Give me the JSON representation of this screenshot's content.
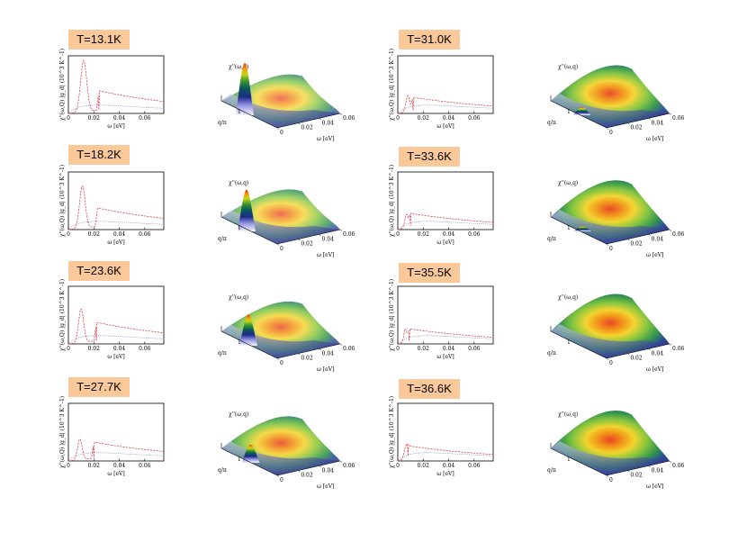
{
  "chart_data": {
    "type": "line",
    "description_free": true,
    "xlabel": "ω [eV]",
    "ylabel": "χ''(ω,Q) |g_d| (10^3 K^-1)",
    "xticks": [
      "0",
      "0.02",
      "0.04",
      "0.06"
    ],
    "xlim": [
      0,
      0.075
    ],
    "surface_zlabel": "χ''(ω,q)",
    "surface_qlabel": "q/π",
    "surface_q_tick": "1",
    "surface_xlabel": "ω [eV]",
    "surface_xticks": [
      "0",
      "0.02",
      "0.04",
      "0.06"
    ],
    "panels": [
      {
        "temperature": "T=13.1K",
        "peak_w": 0.012,
        "peak_h": 0.95,
        "gap_w": 0.024,
        "gap_h": 0.42,
        "surf_peak": 1.0,
        "surf_dome": 0.3
      },
      {
        "temperature": "T=18.2K",
        "peak_w": 0.011,
        "peak_h": 0.78,
        "gap_w": 0.023,
        "gap_h": 0.4,
        "surf_peak": 0.8,
        "surf_dome": 0.35
      },
      {
        "temperature": "T=23.6K",
        "peak_w": 0.01,
        "peak_h": 0.62,
        "gap_w": 0.022,
        "gap_h": 0.4,
        "surf_peak": 0.6,
        "surf_dome": 0.45
      },
      {
        "temperature": "T=27.7K",
        "peak_w": 0.009,
        "peak_h": 0.38,
        "gap_w": 0.02,
        "gap_h": 0.35,
        "surf_peak": 0.35,
        "surf_dome": 0.55
      },
      {
        "temperature": "T=31.0K",
        "peak_w": 0.008,
        "peak_h": 0.3,
        "gap_w": 0.012,
        "gap_h": 0.3,
        "surf_peak": 0.15,
        "surf_dome": 0.7
      },
      {
        "temperature": "T=33.6K",
        "peak_w": 0.007,
        "peak_h": 0.25,
        "gap_w": 0.01,
        "gap_h": 0.3,
        "surf_peak": 0.1,
        "surf_dome": 0.75
      },
      {
        "temperature": "T=35.5K",
        "peak_w": 0.006,
        "peak_h": 0.25,
        "gap_w": 0.009,
        "gap_h": 0.28,
        "surf_peak": 0.05,
        "surf_dome": 0.78
      },
      {
        "temperature": "T=36.6K",
        "peak_w": 0.006,
        "peak_h": 0.22,
        "gap_w": 0.008,
        "gap_h": 0.28,
        "surf_peak": 0.02,
        "surf_dome": 0.8
      }
    ]
  }
}
